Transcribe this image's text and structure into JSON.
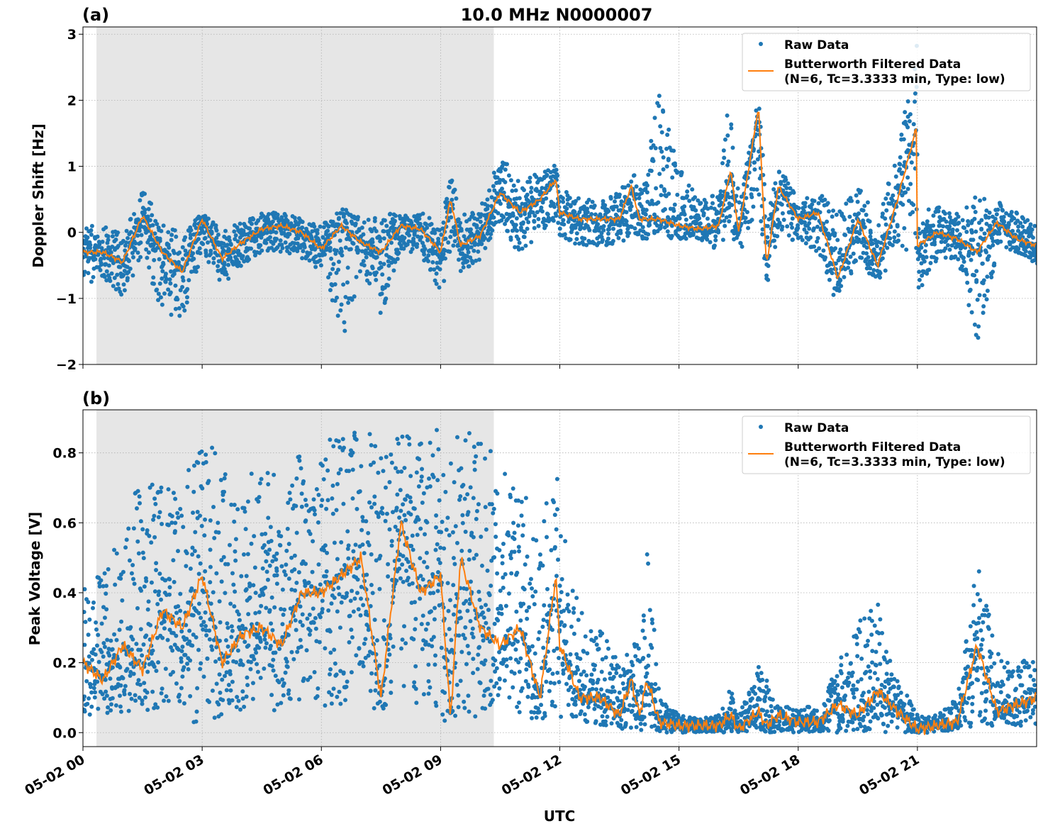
{
  "title": "10.0 MHz N0000007",
  "xlabel": "UTC",
  "colors": {
    "raw": "#1f77b4",
    "filtered": "#ff7f0e",
    "shade": "#e6e6e6"
  },
  "x_tick_labels": [
    "05-02 00",
    "05-02 03",
    "05-02 06",
    "05-02 09",
    "05-02 12",
    "05-02 15",
    "05-02 18",
    "05-02 21"
  ],
  "legend": {
    "raw": "Raw Data",
    "filtered_line1": "Butterworth Filtered Data",
    "filtered_line2": "(N=6, Tc=3.3333 min, Type: low)"
  },
  "chart_data": [
    {
      "type": "scatter",
      "panel_label": "(a)",
      "ylabel": "Doppler Shift [Hz]",
      "x_unit": "hours UTC on 05-02",
      "xlim": [
        0,
        24
      ],
      "ylim": [
        -2,
        3.11
      ],
      "y_ticks": [
        -2,
        -1,
        0,
        1,
        2,
        3
      ],
      "y_tick_labels": [
        "−2",
        "−1",
        "0",
        "1",
        "2",
        "3"
      ],
      "grid": true,
      "legend_position": "top-right",
      "shaded_interval": [
        0.34,
        10.34
      ],
      "x": [
        0,
        0.5,
        1,
        1.5,
        2,
        2.5,
        3,
        3.5,
        4,
        4.5,
        5,
        5.5,
        6,
        6.5,
        7,
        7.5,
        8,
        8.5,
        9,
        9.25,
        9.5,
        10,
        10.5,
        11,
        11.5,
        11.9,
        12,
        12.5,
        13,
        13.5,
        13.8,
        14,
        14.5,
        15,
        15.5,
        16,
        16.3,
        16.5,
        17,
        17.2,
        17.5,
        18,
        18.5,
        19,
        19.5,
        20,
        20.5,
        20.98,
        21,
        21.5,
        22,
        22.5,
        23,
        23.5,
        24
      ],
      "series": [
        {
          "name": "Butterworth Filtered Data",
          "values": [
            -0.3,
            -0.3,
            -0.45,
            0.25,
            -0.3,
            -0.6,
            0.2,
            -0.4,
            -0.15,
            0.05,
            0.1,
            0.0,
            -0.25,
            0.1,
            -0.15,
            -0.3,
            0.1,
            0.05,
            -0.3,
            0.5,
            -0.2,
            -0.05,
            0.6,
            0.3,
            0.5,
            0.8,
            0.3,
            0.2,
            0.2,
            0.2,
            0.7,
            0.2,
            0.2,
            0.1,
            0.05,
            0.1,
            0.95,
            0.0,
            1.9,
            -0.5,
            0.7,
            0.2,
            0.3,
            -0.7,
            0.2,
            -0.5,
            0.5,
            1.6,
            -0.2,
            0.0,
            -0.1,
            -0.3,
            0.15,
            -0.1,
            -0.2
          ]
        },
        {
          "name": "Raw Data",
          "low": [
            -0.8,
            -0.7,
            -1.0,
            -0.3,
            -1.3,
            -1.3,
            -0.3,
            -0.8,
            -0.5,
            -0.3,
            -0.3,
            -0.4,
            -0.6,
            -1.7,
            -0.6,
            -1.3,
            -0.3,
            -0.3,
            -1.1,
            -0.2,
            -0.6,
            -0.4,
            0.2,
            -0.4,
            0.0,
            0.2,
            -0.1,
            -0.2,
            -0.2,
            -0.2,
            0.0,
            -0.1,
            -0.1,
            -0.1,
            -0.2,
            -0.3,
            0.0,
            -0.4,
            0.5,
            -0.9,
            0.0,
            -0.2,
            -0.3,
            -1.2,
            -0.4,
            -0.8,
            -0.2,
            -0.5,
            -0.9,
            -0.4,
            -0.4,
            -1.7,
            -0.3,
            -0.3,
            -0.5
          ],
          "high": [
            0.1,
            0.1,
            0.0,
            0.65,
            0.2,
            0.0,
            0.35,
            0.0,
            0.2,
            0.3,
            0.3,
            0.2,
            0.1,
            0.4,
            0.2,
            0.3,
            0.3,
            0.3,
            0.1,
            0.9,
            0.3,
            0.4,
            1.15,
            0.8,
            0.9,
            1.1,
            0.7,
            0.5,
            0.5,
            0.6,
            1.0,
            0.6,
            2.2,
            1.0,
            0.5,
            0.6,
            2.4,
            0.5,
            2.05,
            0.3,
            1.0,
            0.5,
            0.6,
            0.3,
            0.7,
            0.2,
            1.25,
            2.9,
            0.3,
            0.4,
            0.3,
            0.6,
            0.5,
            0.3,
            0.1
          ]
        }
      ]
    },
    {
      "type": "scatter",
      "panel_label": "(b)",
      "ylabel": "Peak Voltage [V]",
      "x_unit": "hours UTC on 05-02",
      "xlim": [
        0,
        24
      ],
      "ylim": [
        -0.04,
        0.923
      ],
      "y_ticks": [
        0,
        0.2,
        0.4,
        0.6,
        0.8
      ],
      "y_tick_labels": [
        "0.0",
        "0.2",
        "0.4",
        "0.6",
        "0.8"
      ],
      "grid": true,
      "legend_position": "top-right",
      "shaded_interval": [
        0.34,
        10.34
      ],
      "x": [
        0,
        0.5,
        1,
        1.5,
        2,
        2.5,
        3,
        3.5,
        4,
        4.5,
        5,
        5.5,
        6,
        6.5,
        7,
        7.5,
        8,
        8.5,
        9,
        9.25,
        9.5,
        10,
        10.5,
        11,
        11.5,
        11.9,
        12,
        12.5,
        13,
        13.5,
        13.8,
        14,
        14.2,
        14.5,
        15,
        15.5,
        16,
        16.3,
        16.5,
        17,
        17.2,
        17.5,
        18,
        18.5,
        19,
        19.5,
        20,
        20.5,
        21,
        21.5,
        22,
        22.5,
        23,
        23.5,
        24
      ],
      "series": [
        {
          "name": "Butterworth Filtered Data",
          "values": [
            0.2,
            0.15,
            0.25,
            0.18,
            0.35,
            0.3,
            0.45,
            0.2,
            0.28,
            0.3,
            0.25,
            0.4,
            0.4,
            0.45,
            0.5,
            0.1,
            0.6,
            0.4,
            0.45,
            0.04,
            0.5,
            0.3,
            0.25,
            0.3,
            0.1,
            0.45,
            0.25,
            0.1,
            0.1,
            0.05,
            0.15,
            0.05,
            0.15,
            0.03,
            0.02,
            0.02,
            0.02,
            0.05,
            0.01,
            0.06,
            0.02,
            0.05,
            0.03,
            0.03,
            0.08,
            0.05,
            0.12,
            0.06,
            0.01,
            0.02,
            0.03,
            0.25,
            0.06,
            0.08,
            0.1
          ]
        },
        {
          "name": "Raw Data",
          "low": [
            0.05,
            0.05,
            0.06,
            0.06,
            0.07,
            0.03,
            0.02,
            0.05,
            0.06,
            0.07,
            0.06,
            0.08,
            0.07,
            0.07,
            0.08,
            0.05,
            0.1,
            0.08,
            0.03,
            0.02,
            0.05,
            0.04,
            0.1,
            0.05,
            0.03,
            0.05,
            0.03,
            0.02,
            0.02,
            0.01,
            0.01,
            0.0,
            0.0,
            0.0,
            0.0,
            0.0,
            0.0,
            0.0,
            0.0,
            0.01,
            0.0,
            0.0,
            0.0,
            0.0,
            0.0,
            0.0,
            0.0,
            0.0,
            0.0,
            0.0,
            0.01,
            0.02,
            0.02,
            0.02,
            0.02
          ],
          "high": [
            0.44,
            0.45,
            0.6,
            0.76,
            0.7,
            0.74,
            0.83,
            0.82,
            0.7,
            0.8,
            0.75,
            0.82,
            0.85,
            0.86,
            0.87,
            0.85,
            0.86,
            0.84,
            0.88,
            0.82,
            0.86,
            0.86,
            0.75,
            0.7,
            0.6,
            0.8,
            0.64,
            0.35,
            0.3,
            0.2,
            0.25,
            0.3,
            0.55,
            0.1,
            0.05,
            0.04,
            0.05,
            0.13,
            0.05,
            0.2,
            0.15,
            0.08,
            0.07,
            0.08,
            0.2,
            0.33,
            0.37,
            0.15,
            0.05,
            0.05,
            0.1,
            0.49,
            0.23,
            0.2,
            0.22
          ]
        }
      ]
    }
  ]
}
